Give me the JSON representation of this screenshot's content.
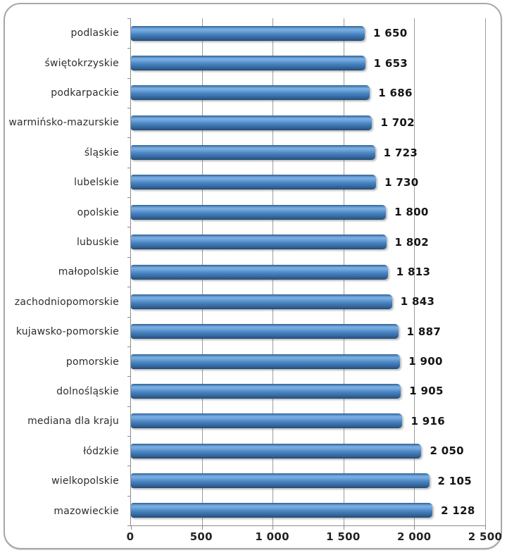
{
  "chart_data": {
    "type": "bar",
    "orientation": "horizontal",
    "title": "",
    "xlabel": "",
    "ylabel": "",
    "categories": [
      "podlaskie",
      "świętokrzyskie",
      "podkarpackie",
      "warmińsko-mazurskie",
      "śląskie",
      "lubelskie",
      "opolskie",
      "lubuskie",
      "małopolskie",
      "zachodniopomorskie",
      "kujawsko-pomorskie",
      "pomorskie",
      "dolnośląskie",
      "mediana dla kraju",
      "łódzkie",
      "wielkopolskie",
      "mazowieckie"
    ],
    "values": [
      1650,
      1653,
      1686,
      1702,
      1723,
      1730,
      1800,
      1802,
      1813,
      1843,
      1887,
      1900,
      1905,
      1916,
      2050,
      2105,
      2128
    ],
    "value_labels": [
      "1 650",
      "1 653",
      "1 686",
      "1 702",
      "1 723",
      "1 730",
      "1 800",
      "1 802",
      "1 813",
      "1 843",
      "1 887",
      "1 900",
      "1 905",
      "1 916",
      "2 050",
      "2 105",
      "2 128"
    ],
    "xlim": [
      0,
      2500
    ],
    "x_ticks": [
      0,
      500,
      1000,
      1500,
      2000,
      2500
    ],
    "x_tick_labels": [
      "0",
      "500",
      "1 000",
      "1 500",
      "2 000",
      "2 500"
    ],
    "grid": true,
    "legend": false,
    "colors": {
      "bar_main": "#3c7bbe",
      "bar_highlight": "#7db1e4",
      "bar_dark_edge": "#234a70",
      "gridline": "#9b9b9b",
      "axis": "#8c8c8c",
      "frame_border": "#a9a9a9",
      "background": "#ffffff",
      "label_text": "#2e2e2e",
      "value_text": "#141414"
    }
  }
}
